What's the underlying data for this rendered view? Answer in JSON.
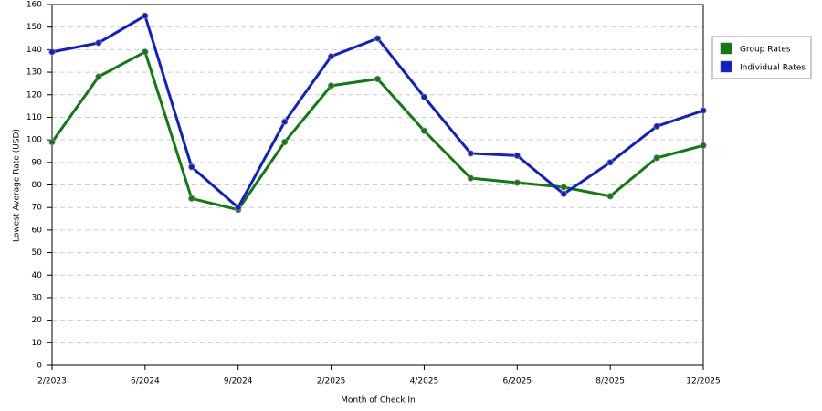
{
  "chart_data": {
    "type": "line",
    "x_label": "Month of Check In",
    "y_label": "Lowest Average Rate (USD)",
    "categories": [
      "2/2023",
      null,
      "6/2024",
      null,
      "9/2024",
      null,
      "2/2025",
      null,
      "4/2025",
      null,
      "6/2025",
      null,
      "8/2025",
      null,
      "12/2025"
    ],
    "series": [
      {
        "name": "Group Rates",
        "color": "#117a11",
        "values": [
          99,
          128,
          139,
          74,
          69,
          99,
          124,
          127,
          104,
          83,
          81,
          79,
          75,
          92,
          97.5
        ]
      },
      {
        "name": "Individual Rates",
        "color": "#1020c8",
        "values": [
          139,
          143,
          155,
          88,
          70,
          108,
          137,
          145,
          119,
          94,
          93,
          76,
          90,
          106,
          113
        ]
      }
    ],
    "ylim": [
      0,
      160
    ],
    "yticks": [
      0,
      10,
      20,
      30,
      40,
      50,
      60,
      70,
      80,
      90,
      100,
      110,
      120,
      130,
      140,
      150,
      160
    ],
    "grid": true,
    "legend": "right"
  }
}
